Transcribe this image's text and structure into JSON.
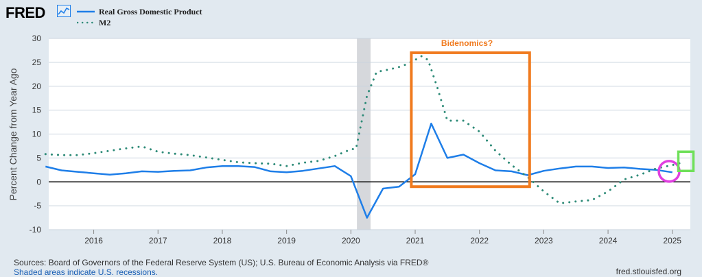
{
  "header": {
    "logo_text": "FRED",
    "logo_icon": "chart-line-icon",
    "legend": [
      {
        "label": "Real Gross Domestic Product",
        "style": "solid",
        "color": "#1e7ee8"
      },
      {
        "label": "M2",
        "style": "dotted",
        "color": "#2e8b78"
      }
    ]
  },
  "chart_data": {
    "type": "line",
    "ylabel": "Percent Change from Year Ago",
    "xlabel": "",
    "ylim": [
      -10,
      30
    ],
    "xlim": [
      2015.3,
      2025.28
    ],
    "yticks": [
      -10,
      -5,
      0,
      5,
      10,
      15,
      20,
      25,
      30
    ],
    "ytick_labels": [
      "-10",
      "-5",
      "0",
      "5",
      "10",
      "15",
      "20",
      "25",
      "30"
    ],
    "xticks": [
      2016,
      2017,
      2018,
      2019,
      2020,
      2021,
      2022,
      2023,
      2024,
      2025
    ],
    "xtick_labels": [
      "2016",
      "2017",
      "2018",
      "2019",
      "2020",
      "2021",
      "2022",
      "2023",
      "2024",
      "2025"
    ],
    "grid": true,
    "recession": {
      "start": 2020.1,
      "end": 2020.3
    },
    "series": [
      {
        "name": "Real Gross Domestic Product",
        "color": "#1e7ee8",
        "style": "solid",
        "x": [
          2015.25,
          2015.5,
          2015.75,
          2016.0,
          2016.25,
          2016.5,
          2016.75,
          2017.0,
          2017.25,
          2017.5,
          2017.75,
          2018.0,
          2018.25,
          2018.5,
          2018.75,
          2019.0,
          2019.25,
          2019.5,
          2019.75,
          2020.0,
          2020.25,
          2020.5,
          2020.75,
          2021.0,
          2021.25,
          2021.5,
          2021.75,
          2022.0,
          2022.25,
          2022.5,
          2022.75,
          2023.0,
          2023.25,
          2023.5,
          2023.75,
          2024.0,
          2024.25,
          2024.5,
          2024.75,
          2025.0
        ],
        "values": [
          3.2,
          2.4,
          2.1,
          1.8,
          1.5,
          1.8,
          2.2,
          2.1,
          2.3,
          2.4,
          3.0,
          3.3,
          3.3,
          3.1,
          2.2,
          2.0,
          2.3,
          2.8,
          3.3,
          1.2,
          -7.5,
          -1.4,
          -1.0,
          1.6,
          12.2,
          5.0,
          5.7,
          3.9,
          2.4,
          2.2,
          1.4,
          2.3,
          2.8,
          3.2,
          3.2,
          2.9,
          3.0,
          2.7,
          2.5,
          2.0
        ]
      },
      {
        "name": "M2",
        "color": "#2e8b78",
        "style": "dotted",
        "x": [
          2015.25,
          2015.5,
          2015.75,
          2016.0,
          2016.25,
          2016.5,
          2016.75,
          2017.0,
          2017.25,
          2017.5,
          2017.75,
          2018.0,
          2018.25,
          2018.5,
          2018.75,
          2019.0,
          2019.25,
          2019.5,
          2019.75,
          2020.0,
          2020.08,
          2020.25,
          2020.4,
          2020.6,
          2020.8,
          2021.0,
          2021.1,
          2021.2,
          2021.35,
          2021.5,
          2021.75,
          2022.0,
          2022.25,
          2022.5,
          2022.75,
          2023.0,
          2023.25,
          2023.5,
          2023.75,
          2024.0,
          2024.25,
          2024.5,
          2024.75,
          2025.0,
          2025.2
        ],
        "values": [
          5.8,
          5.6,
          5.6,
          6.0,
          6.5,
          7.0,
          7.4,
          6.3,
          5.9,
          5.6,
          5.1,
          4.6,
          4.1,
          3.9,
          3.8,
          3.3,
          4.0,
          4.4,
          5.4,
          6.8,
          6.9,
          18.0,
          23.0,
          23.5,
          24.2,
          25.5,
          26.3,
          25.5,
          19.5,
          12.8,
          12.8,
          10.5,
          6.5,
          3.5,
          1.0,
          -2.0,
          -4.5,
          -4.1,
          -3.8,
          -2.0,
          0.5,
          1.5,
          2.8,
          3.5,
          4.2
        ]
      }
    ],
    "annotations": [
      {
        "text": "Bidenomics?",
        "color": "#f07a1e",
        "shape": "rectangle",
        "x_range": [
          2020.94,
          2022.78
        ],
        "y_range": [
          -1.0,
          27.0
        ]
      },
      {
        "text": "",
        "color": "#e040e0",
        "shape": "circle",
        "x": 2024.95,
        "y": 2.2
      },
      {
        "text": "",
        "color": "#6fe05a",
        "shape": "square",
        "x": 2025.2,
        "y": 4.3
      }
    ]
  },
  "footer": {
    "sources": "Sources: Board of Governors of the Federal Reserve System (US); U.S. Bureau of Economic Analysis via FRED®",
    "recession_note": "Shaded areas indicate U.S. recessions.",
    "site": "fred.stlouisfed.org"
  }
}
